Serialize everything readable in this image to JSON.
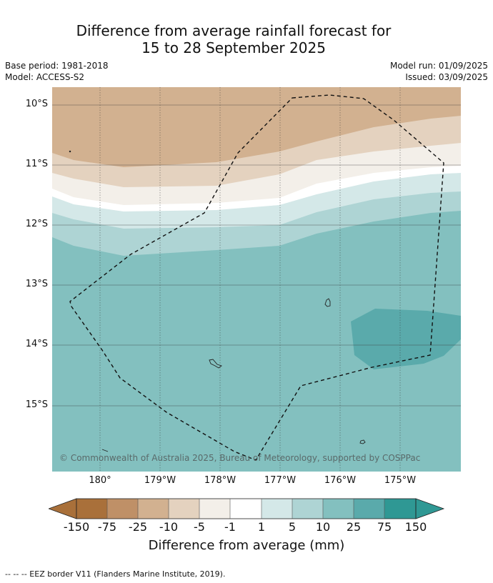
{
  "title_line1": "Difference from average rainfall forecast for",
  "title_line2": "15 to 28 September 2025",
  "left_info": {
    "base_period": "Base period: 1981-2018",
    "model": "Model: ACCESS-S2"
  },
  "right_info": {
    "model_run": "Model run: 01/09/2025",
    "issued": "Issued: 03/09/2025"
  },
  "map": {
    "lat_labels": [
      "10°S",
      "11°S",
      "12°S",
      "13°S",
      "14°S",
      "15°S"
    ],
    "lon_labels": [
      "180°",
      "179°W",
      "178°W",
      "177°W",
      "176°W",
      "175°W"
    ],
    "copyright": "© Commonwealth of Australia 2025, Bureau of Meteorology, supported by COSPPac",
    "colors": {
      "brown_light": "#d2b190",
      "tan": "#e4d2bf",
      "cream": "#f3efe9",
      "white": "#ffffff",
      "teal_palest": "#d4e8e8",
      "teal_pale": "#aed4d4",
      "teal_mid": "#83c0bf",
      "teal_dark": "#5aaaab"
    }
  },
  "colorbar": {
    "ticks": [
      "-150",
      "-75",
      "-25",
      "-10",
      "-5",
      "-1",
      "1",
      "5",
      "10",
      "25",
      "75",
      "150"
    ],
    "colors": [
      "#a9703a",
      "#bf9067",
      "#d2b190",
      "#e4d2bf",
      "#f3efe9",
      "#ffffff",
      "#d4e8e8",
      "#aed4d4",
      "#83c0bf",
      "#5aaaab",
      "#2f9894"
    ],
    "label": "Difference from average (mm)"
  },
  "footnote": "-- -- -- EEZ border V11 (Flanders Marine Institute, 2019)."
}
